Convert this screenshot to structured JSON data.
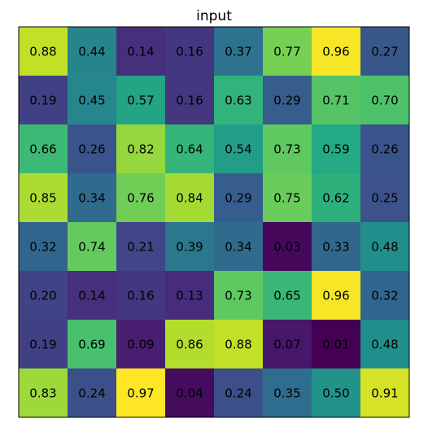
{
  "chart_data": {
    "type": "heatmap",
    "title": "input",
    "colormap": "viridis",
    "values": [
      [
        0.88,
        0.44,
        0.14,
        0.16,
        0.37,
        0.77,
        0.96,
        0.27
      ],
      [
        0.19,
        0.45,
        0.57,
        0.16,
        0.63,
        0.29,
        0.71,
        0.7
      ],
      [
        0.66,
        0.26,
        0.82,
        0.64,
        0.54,
        0.73,
        0.59,
        0.26
      ],
      [
        0.85,
        0.34,
        0.76,
        0.84,
        0.29,
        0.75,
        0.62,
        0.25
      ],
      [
        0.32,
        0.74,
        0.21,
        0.39,
        0.34,
        0.03,
        0.33,
        0.48
      ],
      [
        0.2,
        0.14,
        0.16,
        0.13,
        0.73,
        0.65,
        0.96,
        0.32
      ],
      [
        0.19,
        0.69,
        0.09,
        0.86,
        0.88,
        0.07,
        0.01,
        0.48
      ],
      [
        0.83,
        0.24,
        0.97,
        0.04,
        0.24,
        0.35,
        0.5,
        0.91
      ]
    ],
    "value_labels": [
      [
        "0.88",
        "0.44",
        "0.14",
        "0.16",
        "0.37",
        "0.77",
        "0.96",
        "0.27"
      ],
      [
        "0.19",
        "0.45",
        "0.57",
        "0.16",
        "0.63",
        "0.29",
        "0.71",
        "0.70"
      ],
      [
        "0.66",
        "0.26",
        "0.82",
        "0.64",
        "0.54",
        "0.73",
        "0.59",
        "0.26"
      ],
      [
        "0.85",
        "0.34",
        "0.76",
        "0.84",
        "0.29",
        "0.75",
        "0.62",
        "0.25"
      ],
      [
        "0.32",
        "0.74",
        "0.21",
        "0.39",
        "0.34",
        "0.03",
        "0.33",
        "0.48"
      ],
      [
        "0.20",
        "0.14",
        "0.16",
        "0.13",
        "0.73",
        "0.65",
        "0.96",
        "0.32"
      ],
      [
        "0.19",
        "0.69",
        "0.09",
        "0.86",
        "0.88",
        "0.07",
        "0.01",
        "0.48"
      ],
      [
        "0.83",
        "0.24",
        "0.97",
        "0.04",
        "0.24",
        "0.35",
        "0.50",
        "0.91"
      ]
    ]
  }
}
